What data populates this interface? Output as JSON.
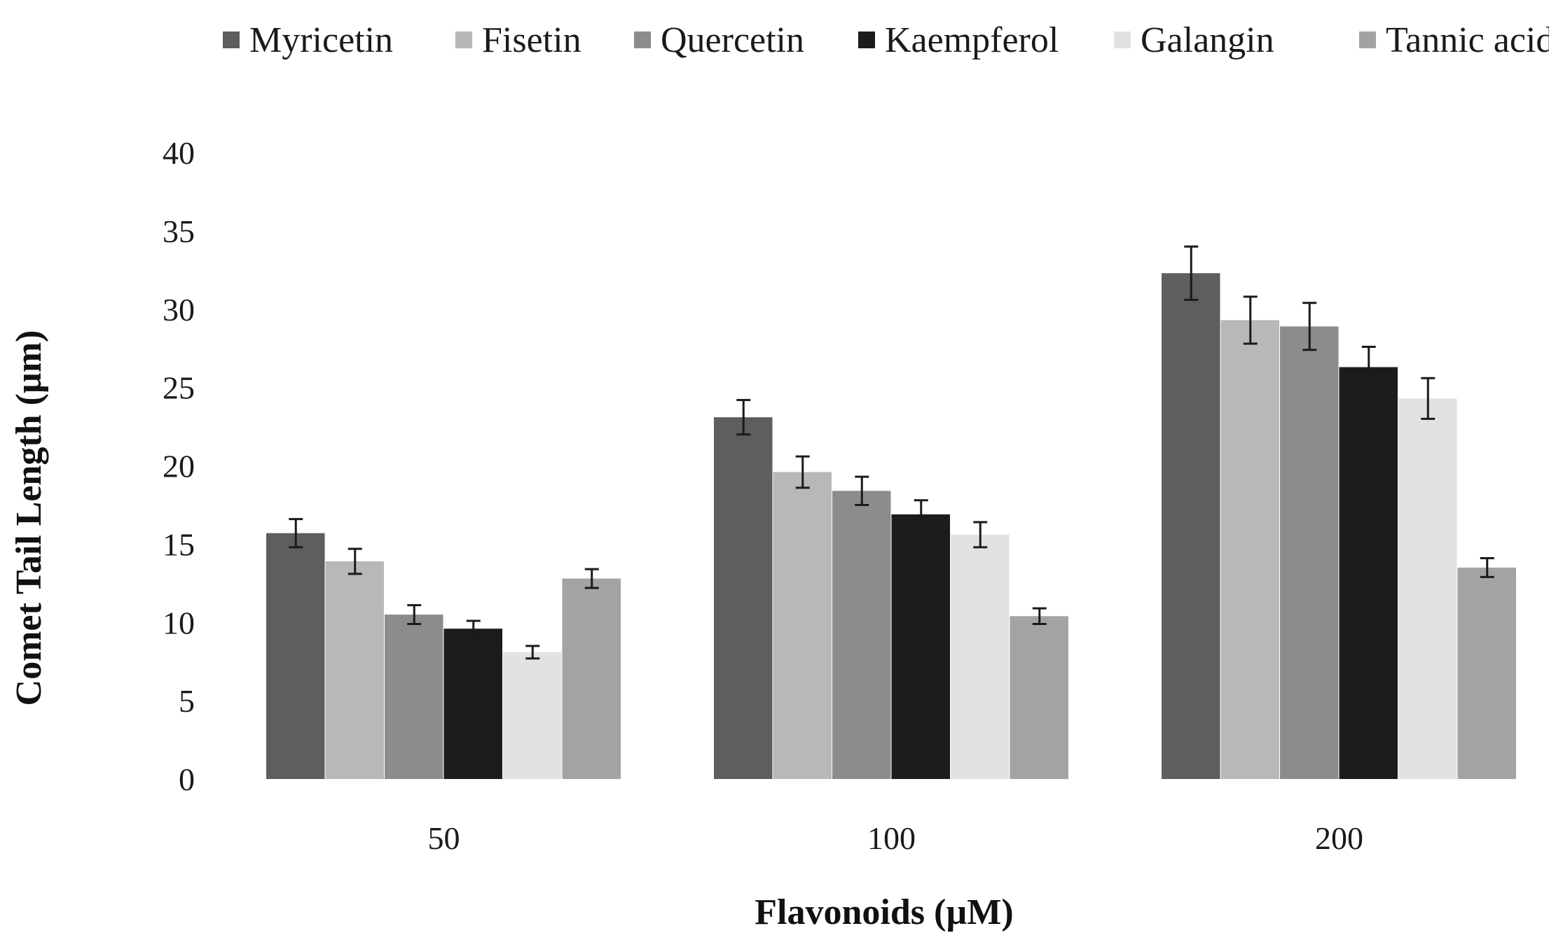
{
  "chart_data": {
    "type": "bar",
    "title": "",
    "xlabel": "Flavonoids (µM)",
    "ylabel": "Comet Tail  Length (µm)",
    "categories": [
      "50",
      "100",
      "200"
    ],
    "ylim": [
      0,
      40
    ],
    "yticks": [
      0,
      5,
      10,
      15,
      20,
      25,
      30,
      35,
      40
    ],
    "grid": false,
    "legend_position": "top",
    "series": [
      {
        "name": "Myricetin",
        "color": "#5e5e5e",
        "values": [
          15.7,
          23.1,
          32.3
        ],
        "errors": [
          0.9,
          1.1,
          1.7
        ]
      },
      {
        "name": "Fisetin",
        "color": "#b8b8b8",
        "values": [
          13.9,
          19.6,
          29.3
        ],
        "errors": [
          0.8,
          1.0,
          1.5
        ]
      },
      {
        "name": "Quercetin",
        "color": "#8c8c8c",
        "values": [
          10.5,
          18.4,
          28.9
        ],
        "errors": [
          0.6,
          0.9,
          1.5
        ]
      },
      {
        "name": "Kaempferol",
        "color": "#1c1c1c",
        "values": [
          9.6,
          16.9,
          26.3
        ],
        "errors": [
          0.5,
          0.9,
          1.3
        ]
      },
      {
        "name": "Galangin",
        "color": "#e2e2e2",
        "values": [
          8.1,
          15.6,
          24.3
        ],
        "errors": [
          0.4,
          0.8,
          1.3
        ]
      },
      {
        "name": "Tannic acid",
        "color": "#a3a3a3",
        "values": [
          12.8,
          10.4,
          13.5
        ],
        "errors": [
          0.6,
          0.5,
          0.6
        ]
      }
    ]
  }
}
